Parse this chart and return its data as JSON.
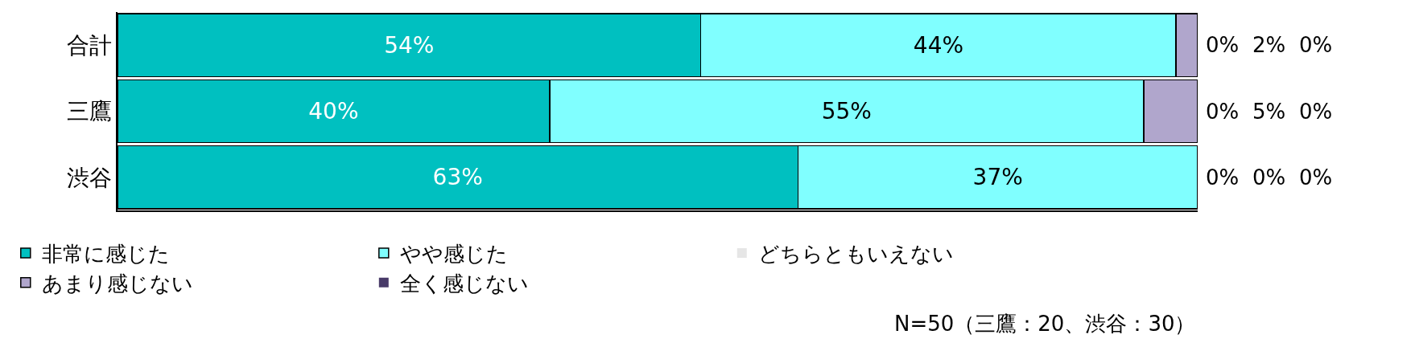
{
  "chart_data": {
    "type": "bar",
    "orientation": "horizontal",
    "stacked": true,
    "categories": [
      "合計",
      "三鷹",
      "渋谷"
    ],
    "series": [
      {
        "name": "非常に感じた",
        "color": "#00c0c0",
        "values": [
          54,
          40,
          63
        ],
        "value_labels": [
          "54%",
          "40%",
          "63%"
        ]
      },
      {
        "name": "やや感じた",
        "color": "#80ffff",
        "values": [
          44,
          55,
          37
        ],
        "value_labels": [
          "44%",
          "55%",
          "37%"
        ]
      },
      {
        "name": "どちらともいえない",
        "color": "#e6e6e6",
        "values": [
          0,
          0,
          0
        ],
        "value_labels": [
          "0%",
          "0%",
          "0%"
        ]
      },
      {
        "name": "あまり感じない",
        "color": "#b0a6cc",
        "values": [
          2,
          5,
          0
        ],
        "value_labels": [
          "2%",
          "5%",
          "0%"
        ]
      },
      {
        "name": "全く感じない",
        "color": "#483a68",
        "values": [
          0,
          0,
          0
        ],
        "value_labels": [
          "0%",
          "0%",
          "0%"
        ]
      }
    ],
    "tick_labels": "y",
    "legend": "bottom",
    "annotations": [
      "N=50（三鷹：20、渋谷：30）"
    ]
  }
}
